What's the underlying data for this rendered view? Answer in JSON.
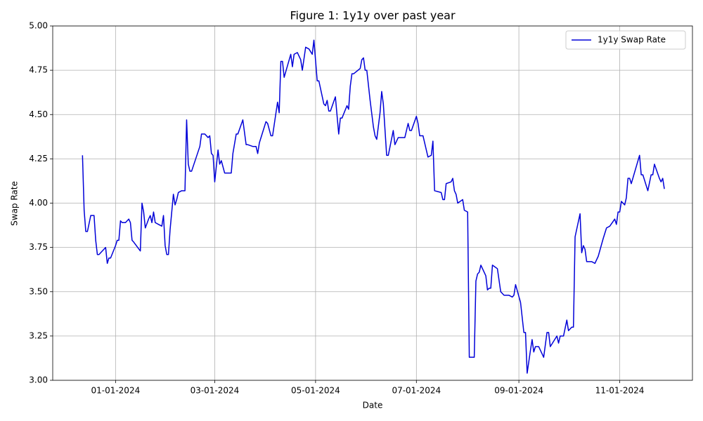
{
  "chart_data": {
    "type": "line",
    "title": "Figure 1: 1y1y over past year",
    "x_label": "Date",
    "y_label": "Swap Rate",
    "grid": true,
    "legend": "upper right",
    "xlim": [
      "2023-11-24",
      "2024-12-15"
    ],
    "xticks": [
      {
        "value": "2024-01-01",
        "label": "01-01-2024"
      },
      {
        "value": "2024-03-01",
        "label": "03-01-2024"
      },
      {
        "value": "2024-05-01",
        "label": "05-01-2024"
      },
      {
        "value": "2024-07-01",
        "label": "07-01-2024"
      },
      {
        "value": "2024-09-01",
        "label": "09-01-2024"
      },
      {
        "value": "2024-11-01",
        "label": "11-01-2024"
      }
    ],
    "ylim": [
      3,
      5
    ],
    "yticks": [
      {
        "value": 3,
        "label": "3.00"
      },
      3.25,
      {
        "value": 3.5,
        "label": "3.50"
      },
      3.75,
      {
        "value": 4,
        "label": "4.00"
      },
      4.25,
      {
        "value": 4.5,
        "label": "4.50"
      },
      4.75,
      {
        "value": 5,
        "label": "5.00"
      }
    ],
    "x": [
      "2023-12-12",
      "2023-12-13",
      "2023-12-14",
      "2023-12-15",
      "2023-12-17",
      "2023-12-19",
      "2023-12-20",
      "2023-12-21",
      "2023-12-22",
      "2023-12-26",
      "2023-12-27",
      "2023-12-28",
      "2023-12-29",
      "2024-01-01",
      "2024-01-02",
      "2024-01-03",
      "2024-01-04",
      "2024-01-05",
      "2024-01-07",
      "2024-01-09",
      "2024-01-10",
      "2024-01-11",
      "2024-01-12",
      "2024-01-16",
      "2024-01-17",
      "2024-01-18",
      "2024-01-19",
      "2024-01-21",
      "2024-01-22",
      "2024-01-23",
      "2024-01-24",
      "2024-01-25",
      "2024-01-27",
      "2024-01-29",
      "2024-01-30",
      "2024-01-31",
      "2024-02-01",
      "2024-02-02",
      "2024-02-03",
      "2024-02-05",
      "2024-02-06",
      "2024-02-07",
      "2024-02-08",
      "2024-02-10",
      "2024-02-12",
      "2024-02-13",
      "2024-02-14",
      "2024-02-15",
      "2024-02-16",
      "2024-02-21",
      "2024-02-22",
      "2024-02-24",
      "2024-02-26",
      "2024-02-27",
      "2024-02-28",
      "2024-02-29",
      "2024-03-01",
      "2024-03-03",
      "2024-03-04",
      "2024-03-05",
      "2024-03-07",
      "2024-03-11",
      "2024-03-12",
      "2024-03-14",
      "2024-03-15",
      "2024-03-18",
      "2024-03-20",
      "2024-03-21",
      "2024-03-24",
      "2024-03-26",
      "2024-03-27",
      "2024-03-28",
      "2024-04-01",
      "2024-04-02",
      "2024-04-04",
      "2024-04-05",
      "2024-04-08",
      "2024-04-09",
      "2024-04-10",
      "2024-04-11",
      "2024-04-12",
      "2024-04-16",
      "2024-04-17",
      "2024-04-18",
      "2024-04-20",
      "2024-04-22",
      "2024-04-23",
      "2024-04-25",
      "2024-04-27",
      "2024-04-29",
      "2024-04-30",
      "2024-05-02",
      "2024-05-03",
      "2024-05-06",
      "2024-05-07",
      "2024-05-08",
      "2024-05-09",
      "2024-05-10",
      "2024-05-13",
      "2024-05-15",
      "2024-05-16",
      "2024-05-17",
      "2024-05-20",
      "2024-05-21",
      "2024-05-22",
      "2024-05-23",
      "2024-05-24",
      "2024-05-28",
      "2024-05-29",
      "2024-05-30",
      "2024-05-31",
      "2024-06-01",
      "2024-06-03",
      "2024-06-05",
      "2024-06-06",
      "2024-06-07",
      "2024-06-09",
      "2024-06-10",
      "2024-06-11",
      "2024-06-13",
      "2024-06-14",
      "2024-06-17",
      "2024-06-18",
      "2024-06-20",
      "2024-06-24",
      "2024-06-26",
      "2024-06-27",
      "2024-06-28",
      "2024-07-01",
      "2024-07-02",
      "2024-07-03",
      "2024-07-05",
      "2024-07-08",
      "2024-07-10",
      "2024-07-11",
      "2024-07-12",
      "2024-07-16",
      "2024-07-17",
      "2024-07-18",
      "2024-07-19",
      "2024-07-22",
      "2024-07-23",
      "2024-07-24",
      "2024-07-25",
      "2024-07-26",
      "2024-07-29",
      "2024-07-30",
      "2024-08-01",
      "2024-08-02",
      "2024-08-05",
      "2024-08-06",
      "2024-08-07",
      "2024-08-08",
      "2024-08-09",
      "2024-08-12",
      "2024-08-13",
      "2024-08-14",
      "2024-08-15",
      "2024-08-16",
      "2024-08-19",
      "2024-08-21",
      "2024-08-23",
      "2024-08-26",
      "2024-08-28",
      "2024-08-29",
      "2024-08-30",
      "2024-09-02",
      "2024-09-04",
      "2024-09-05",
      "2024-09-06",
      "2024-09-08",
      "2024-09-09",
      "2024-09-10",
      "2024-09-11",
      "2024-09-13",
      "2024-09-16",
      "2024-09-18",
      "2024-09-19",
      "2024-09-20",
      "2024-09-24",
      "2024-09-25",
      "2024-09-26",
      "2024-09-28",
      "2024-09-30",
      "2024-10-01",
      "2024-10-03",
      "2024-10-04",
      "2024-10-05",
      "2024-10-08",
      "2024-10-09",
      "2024-10-10",
      "2024-10-11",
      "2024-10-12",
      "2024-10-15",
      "2024-10-17",
      "2024-10-19",
      "2024-10-22",
      "2024-10-24",
      "2024-10-26",
      "2024-10-29",
      "2024-10-30",
      "2024-10-31",
      "2024-11-01",
      "2024-11-02",
      "2024-11-04",
      "2024-11-05",
      "2024-11-06",
      "2024-11-07",
      "2024-11-08",
      "2024-11-13",
      "2024-11-14",
      "2024-11-15",
      "2024-11-18",
      "2024-11-20",
      "2024-11-21",
      "2024-11-22",
      "2024-11-25",
      "2024-11-26",
      "2024-11-27",
      "2024-11-28"
    ],
    "series": [
      {
        "name": "1y1y Swap Rate",
        "color": "#0000d8",
        "values": [
          4.27,
          3.96,
          3.84,
          3.84,
          3.93,
          3.93,
          3.79,
          3.71,
          3.71,
          3.75,
          3.66,
          3.69,
          3.69,
          3.76,
          3.79,
          3.79,
          3.9,
          3.89,
          3.89,
          3.91,
          3.89,
          3.79,
          3.78,
          3.73,
          4.0,
          3.95,
          3.86,
          3.91,
          3.93,
          3.89,
          3.95,
          3.89,
          3.88,
          3.87,
          3.93,
          3.76,
          3.71,
          3.71,
          3.85,
          4.05,
          3.99,
          4.02,
          4.06,
          4.07,
          4.07,
          4.47,
          4.22,
          4.18,
          4.18,
          4.32,
          4.39,
          4.39,
          4.37,
          4.38,
          4.28,
          4.27,
          4.12,
          4.3,
          4.22,
          4.24,
          4.17,
          4.17,
          4.28,
          4.39,
          4.39,
          4.47,
          4.33,
          4.33,
          4.32,
          4.32,
          4.28,
          4.34,
          4.46,
          4.45,
          4.38,
          4.38,
          4.57,
          4.51,
          4.8,
          4.8,
          4.71,
          4.84,
          4.77,
          4.84,
          4.85,
          4.81,
          4.75,
          4.88,
          4.87,
          4.84,
          4.92,
          4.69,
          4.69,
          4.56,
          4.55,
          4.58,
          4.52,
          4.52,
          4.6,
          4.39,
          4.48,
          4.48,
          4.55,
          4.53,
          4.66,
          4.73,
          4.73,
          4.76,
          4.81,
          4.82,
          4.75,
          4.75,
          4.58,
          4.43,
          4.38,
          4.36,
          4.51,
          4.63,
          4.56,
          4.27,
          4.27,
          4.41,
          4.33,
          4.37,
          4.37,
          4.45,
          4.41,
          4.41,
          4.49,
          4.45,
          4.38,
          4.38,
          4.26,
          4.27,
          4.35,
          4.07,
          4.06,
          4.02,
          4.02,
          4.11,
          4.12,
          4.14,
          4.07,
          4.05,
          4.0,
          4.02,
          3.96,
          3.95,
          3.13,
          3.13,
          3.56,
          3.6,
          3.61,
          3.65,
          3.59,
          3.51,
          3.52,
          3.52,
          3.65,
          3.63,
          3.5,
          3.48,
          3.48,
          3.47,
          3.48,
          3.54,
          3.44,
          3.27,
          3.27,
          3.04,
          3.17,
          3.23,
          3.16,
          3.19,
          3.19,
          3.13,
          3.27,
          3.27,
          3.19,
          3.25,
          3.21,
          3.25,
          3.25,
          3.34,
          3.28,
          3.3,
          3.3,
          3.81,
          3.94,
          3.72,
          3.76,
          3.74,
          3.67,
          3.67,
          3.66,
          3.7,
          3.8,
          3.86,
          3.87,
          3.91,
          3.88,
          3.95,
          3.95,
          4.01,
          3.99,
          4.03,
          4.14,
          4.14,
          4.11,
          4.27,
          4.16,
          4.16,
          4.07,
          4.16,
          4.16,
          4.22,
          4.14,
          4.12,
          4.14,
          4.08
        ]
      }
    ]
  }
}
